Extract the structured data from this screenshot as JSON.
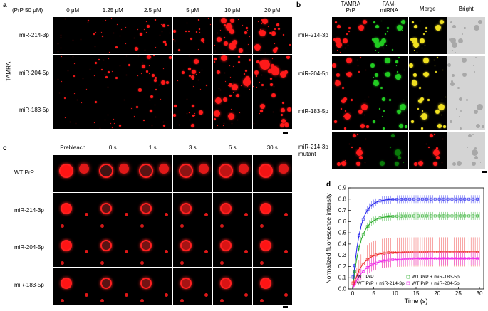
{
  "panel_a": {
    "letter": "a",
    "prp_note": "(PrP 50 μM)",
    "columns": [
      "0 μM",
      "1.25 μM",
      "2.5 μM",
      "5 μM",
      "10 μM",
      "20 μM"
    ],
    "rows": [
      "miR-214-3p",
      "miR-204-5p",
      "miR-183-5p"
    ],
    "side_label": "TAMRA",
    "colors": {
      "droplet": "#ff1a1a"
    }
  },
  "panel_b": {
    "letter": "b",
    "columns": [
      "TAMRA PrP",
      "FAM-miRNA",
      "Merge",
      "Bright"
    ],
    "col_lines": [
      [
        "TAMRA",
        "PrP"
      ],
      [
        "FAM-",
        "miRNA"
      ],
      [
        "Merge"
      ],
      [
        "Bright"
      ]
    ],
    "rows": [
      "miR-214-3p",
      "miR-204-5p",
      "miR-183-5p",
      "miR-214-3p mutant"
    ],
    "row_lines": [
      [
        "miR-214-3p"
      ],
      [
        "miR-204-5p"
      ],
      [
        "miR-183-5p"
      ],
      [
        "miR-214-3p",
        "mutant"
      ]
    ],
    "colors": {
      "tamra": "#ff1a1a",
      "fam": "#22cc22",
      "merge": "#f0e020",
      "bright_bg": "#d4d4d4"
    }
  },
  "panel_c": {
    "letter": "c",
    "columns": [
      "Prebleach",
      "0 s",
      "1 s",
      "3 s",
      "6 s",
      "30 s"
    ],
    "rows": [
      "WT PrP",
      "miR-214-3p",
      "miR-204-5p",
      "miR-183-5p"
    ]
  },
  "panel_d": {
    "letter": "d"
  },
  "chart_data": {
    "type": "line",
    "xlabel": "Time (s)",
    "ylabel": "Normalized fluorescence intensity",
    "xlim": [
      -1,
      31
    ],
    "ylim": [
      0.0,
      0.9
    ],
    "xticks": [
      0,
      5,
      10,
      15,
      20,
      25,
      30
    ],
    "yticks": [
      0.0,
      0.1,
      0.2,
      0.3,
      0.4,
      0.5,
      0.6,
      0.7,
      0.8,
      0.9
    ],
    "legend_placement": "bottom",
    "marker": "open-square",
    "series": [
      {
        "name": "WT PrP",
        "color": "#2222ee",
        "plateau": 0.8,
        "rate": 0.6,
        "err": 0.035
      },
      {
        "name": "WT PrP + miR-183-5p",
        "color": "#22aa22",
        "plateau": 0.65,
        "rate": 0.55,
        "err": 0.035
      },
      {
        "name": "WT PrP + miR-214-3p",
        "color": "#ee2222",
        "plateau": 0.33,
        "rate": 0.45,
        "err": 0.13
      },
      {
        "name": "WT PrP + miR-204-5p",
        "color": "#ee22ee",
        "plateau": 0.27,
        "rate": 0.35,
        "err": 0.06
      }
    ]
  }
}
